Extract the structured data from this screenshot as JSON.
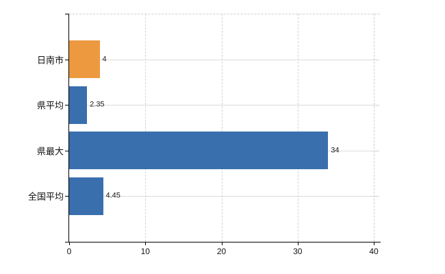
{
  "chart_data": {
    "type": "bar",
    "orientation": "horizontal",
    "title": "",
    "xlabel": "",
    "ylabel": "",
    "categories": [
      "日南市",
      "県平均",
      "県最大",
      "全国平均"
    ],
    "values": [
      4,
      2.35,
      34,
      4.45
    ],
    "value_labels": [
      "4",
      "2.35",
      "34",
      "4.45"
    ],
    "bar_colors": [
      "#EC9940",
      "#3A6FAD",
      "#3A6FAD",
      "#3A6FAD"
    ],
    "xlim": [
      0,
      40
    ],
    "x_ticks": [
      0,
      10,
      20,
      30,
      40
    ],
    "x_tick_labels": [
      "0",
      "10",
      "20",
      "30",
      "40"
    ],
    "grid": true,
    "legend_visible": false,
    "colors": {
      "highlight_bar": "#EC9940",
      "default_bar": "#3A6FAD",
      "axis": "#000000",
      "horizontal_gridline": "#d7ded7",
      "vertical_gridline": "#d8d2d6",
      "dashed_border": "#cfcfcf",
      "background": "#ffffff",
      "text": "#111111"
    }
  }
}
